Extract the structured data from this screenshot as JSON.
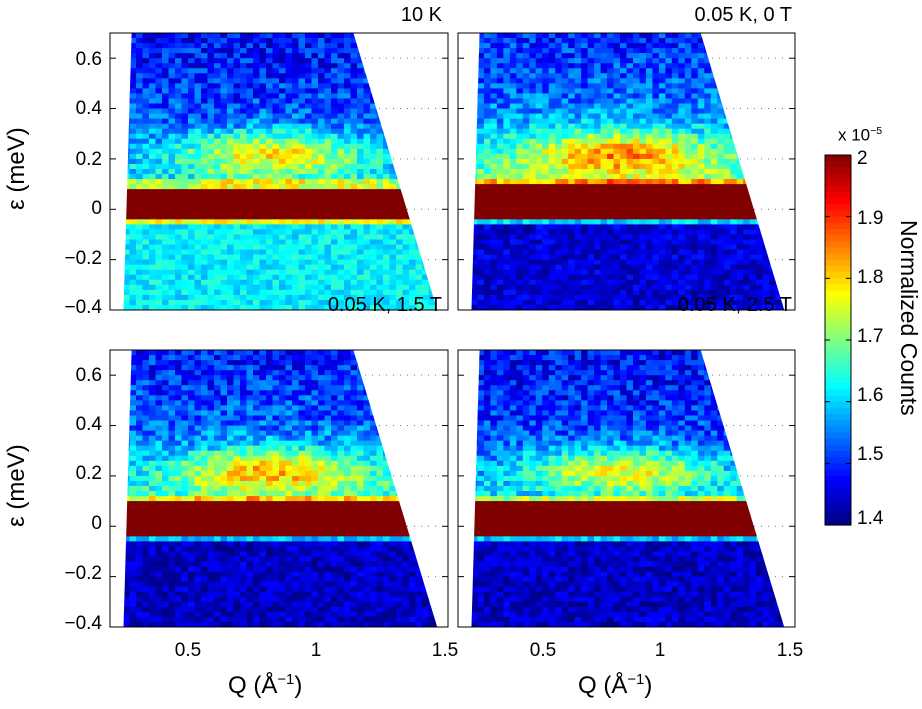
{
  "chart_data": [
    {
      "type": "heatmap",
      "title": "10 K",
      "ylabel": "ε (meV)",
      "xlabel": "",
      "ylim": [
        -0.4,
        0.7
      ],
      "xlim": [
        0.25,
        1.5
      ],
      "yticks": [
        "0.6",
        "0.4",
        "0.2",
        "0",
        "−0.2",
        "−0.4"
      ],
      "xticks": [],
      "elastic_band": [
        -0.05,
        0.08
      ],
      "inelastic_level_above": 1.62,
      "inelastic_level_below": 1.62
    },
    {
      "type": "heatmap",
      "title": "0.05 K, 0 T",
      "ylabel": "",
      "xlabel": "",
      "ylim": [
        -0.4,
        0.7
      ],
      "xlim": [
        0.25,
        1.5
      ],
      "yticks": [],
      "xticks": [],
      "elastic_band": [
        -0.04,
        0.09
      ],
      "inelastic_level_above": 1.7,
      "inelastic_level_below": 1.45
    },
    {
      "type": "heatmap",
      "title": "0.05 K, 1.5 T",
      "ylabel": "ε (meV)",
      "xlabel": "Q (Å^-1)",
      "ylim": [
        -0.4,
        0.7
      ],
      "xlim": [
        0.25,
        1.5
      ],
      "yticks": [
        "0.6",
        "0.4",
        "0.2",
        "0",
        "−0.2",
        "−0.4"
      ],
      "xticks": [
        "0.5",
        "1",
        "1.5"
      ],
      "elastic_band": [
        -0.04,
        0.09
      ],
      "inelastic_level_above": 1.66,
      "inelastic_level_below": 1.44
    },
    {
      "type": "heatmap",
      "title": "0.05 K, 2.5 T",
      "ylabel": "",
      "xlabel": "Q (Å^-1)",
      "ylim": [
        -0.4,
        0.7
      ],
      "xlim": [
        0.25,
        1.5
      ],
      "yticks": [],
      "xticks": [
        "0.5",
        "1",
        "1.5"
      ],
      "elastic_band": [
        -0.04,
        0.09
      ],
      "inelastic_level_above": 1.6,
      "inelastic_level_below": 1.44
    }
  ],
  "colorbar": {
    "label": "Normalized Counts",
    "exponent_prefix": "x 10",
    "exponent_power": "−5",
    "range": [
      1.4,
      2.0
    ],
    "ticks": [
      "2",
      "1.9",
      "1.8",
      "1.7",
      "1.6",
      "1.5",
      "1.4"
    ],
    "colormap": "jet",
    "colors": {
      "min": "#00008f",
      "low": "#0050ff",
      "mid": "#40ffbf",
      "high": "#ffcf00",
      "max": "#800000"
    }
  },
  "shared": {
    "xlabel_prefix": "Q (Å",
    "xlabel_power": "−1",
    "xlabel_suffix": ")"
  }
}
